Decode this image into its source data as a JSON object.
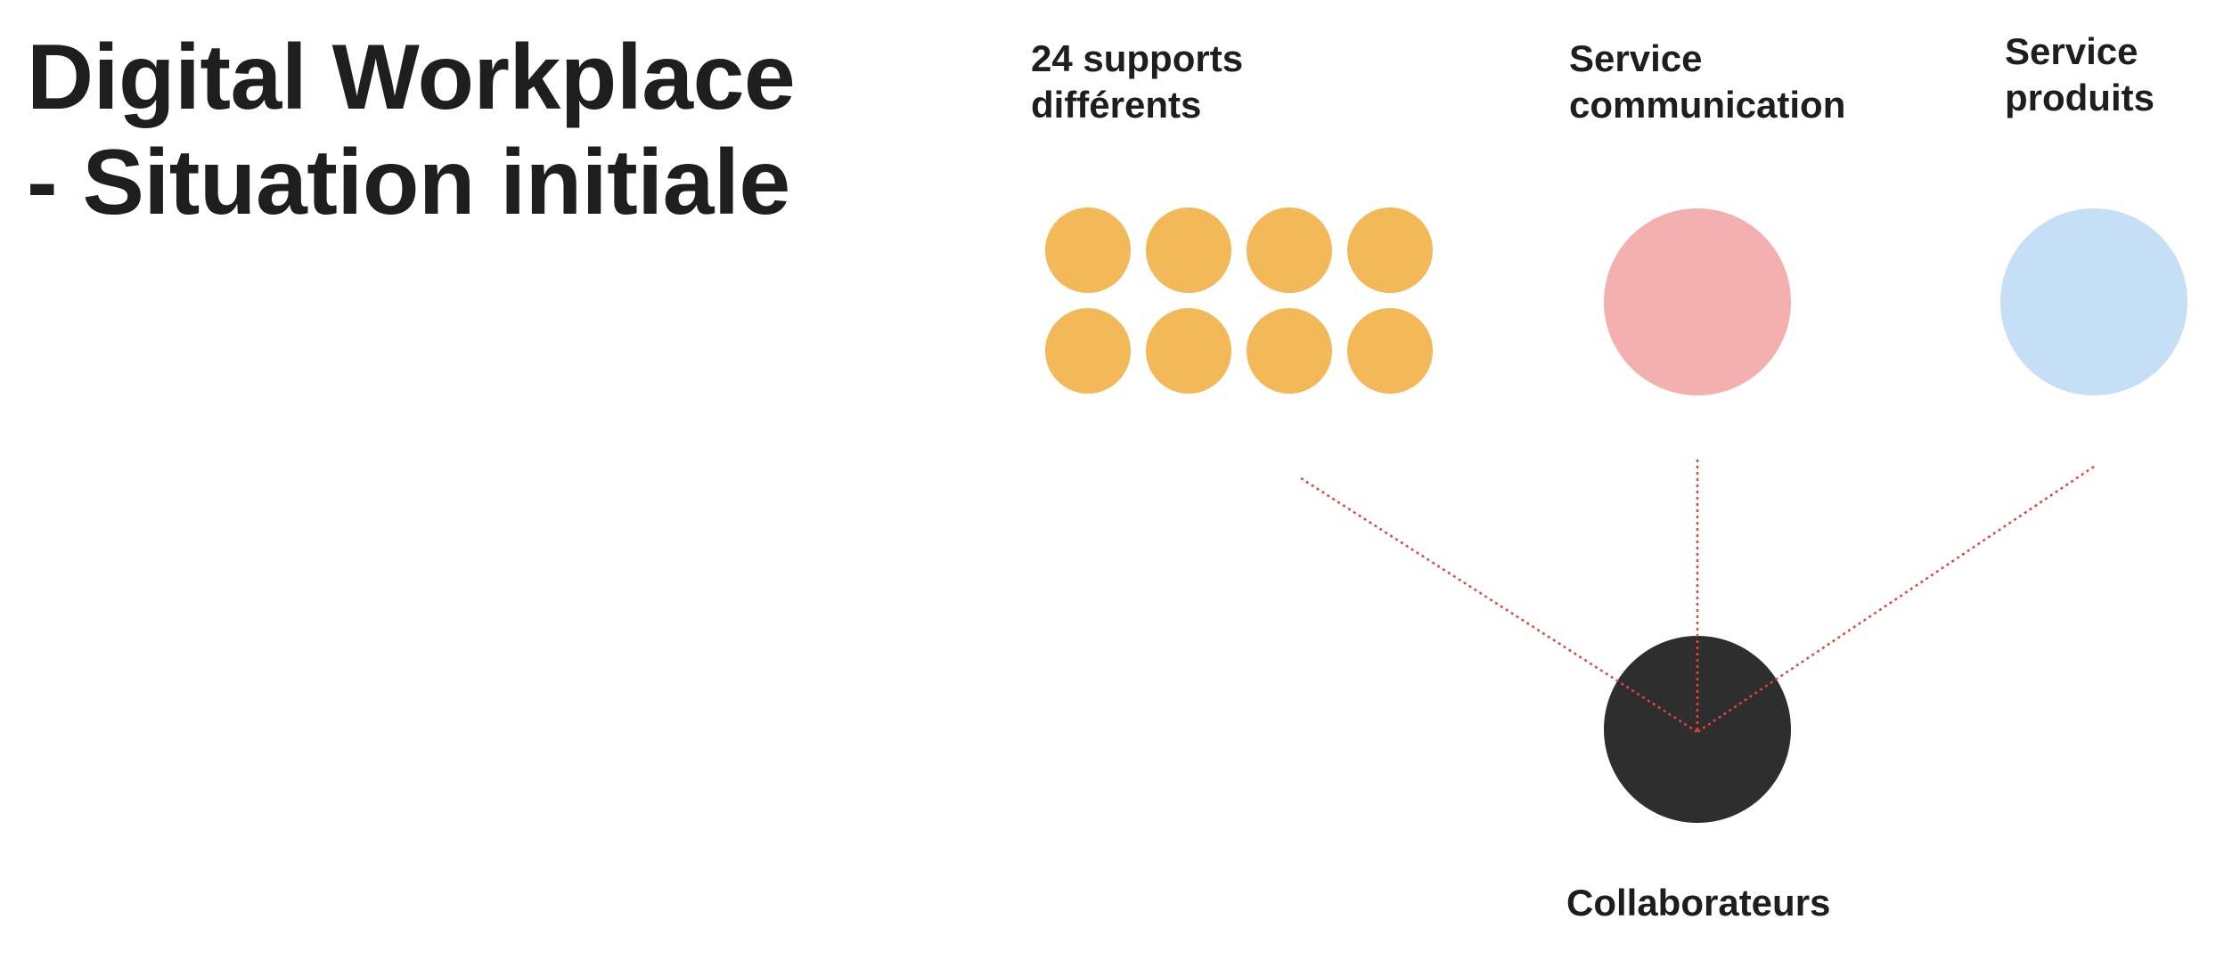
{
  "title": {
    "line1": "Digital Workplace",
    "line2": "- Situation initiale"
  },
  "sources": {
    "supports": {
      "label_line1": "24 supports",
      "label_line2": "différents",
      "color": "#f3b857",
      "dot_count": 8
    },
    "communication": {
      "label_line1": "Service",
      "label_line2": "communication",
      "color": "#f4b0af"
    },
    "produits": {
      "label_line1": "Service",
      "label_line2": "produits",
      "color": "#c6dff7"
    }
  },
  "target": {
    "label": "Collaborateurs",
    "color": "#2e2e2e"
  },
  "connector_color": "#e8423f"
}
